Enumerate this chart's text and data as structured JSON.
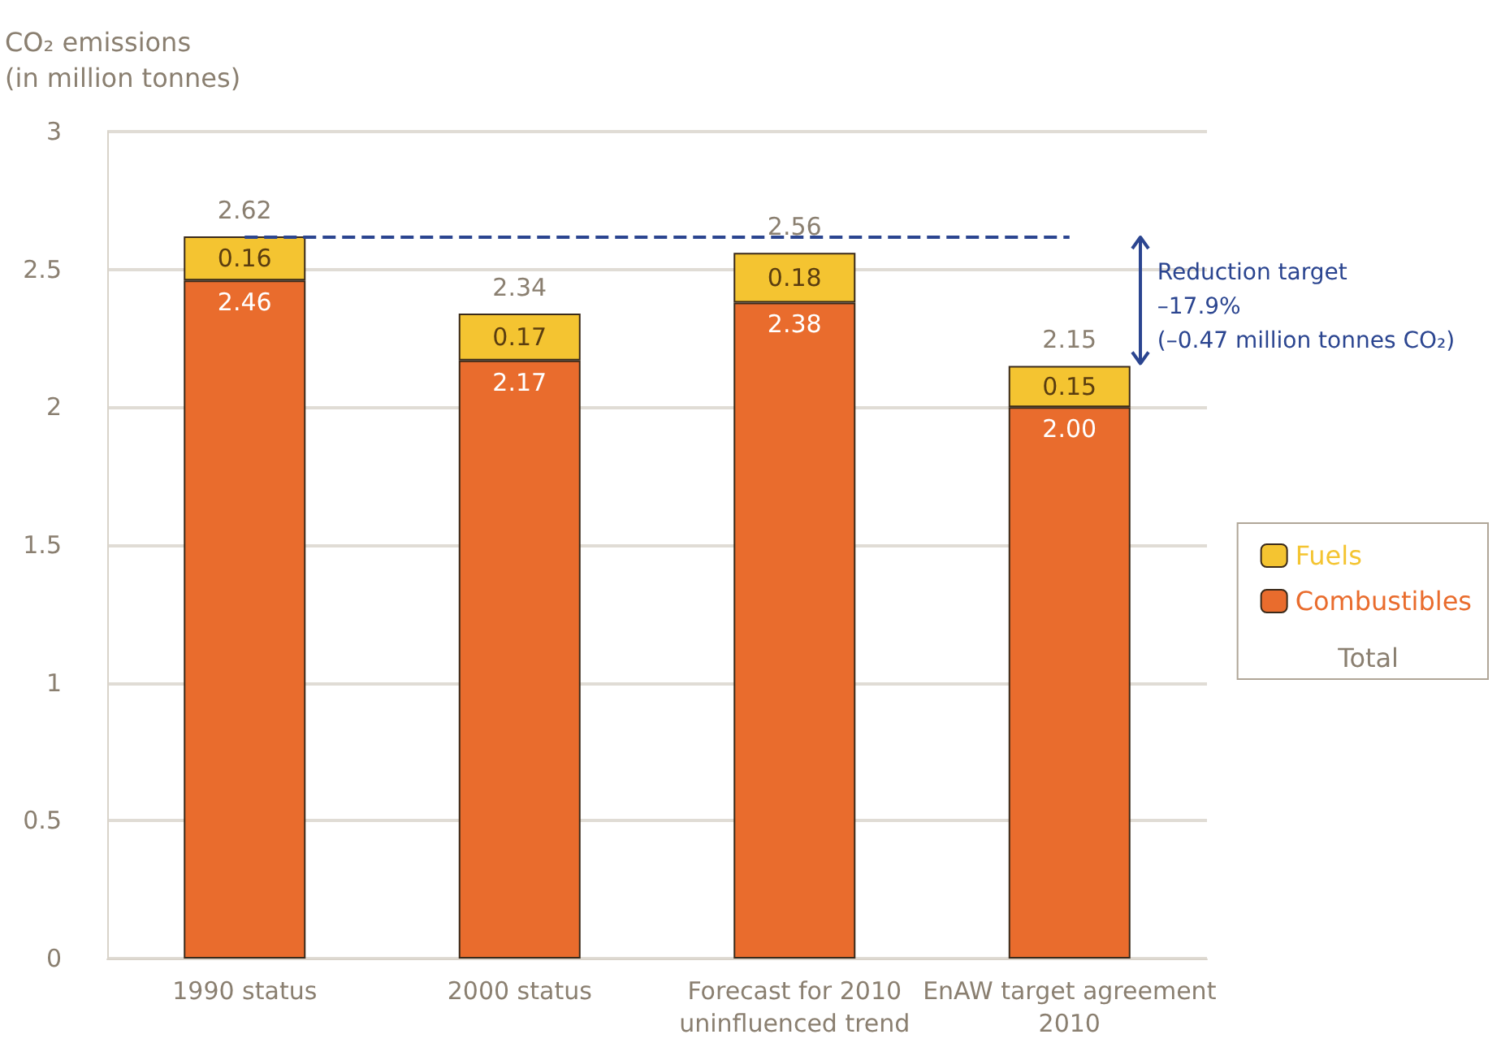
{
  "chart_data": {
    "type": "bar",
    "ylabel": "CO₂ emissions\n(in million tonnes)",
    "categories": [
      "1990 status",
      "2000 status",
      "Forecast for 2010\nuninfluenced trend",
      "EnAW target agreement\n2010"
    ],
    "stacked": true,
    "series": [
      {
        "name": "Combustibles",
        "color": "#e96c2d",
        "values": [
          2.46,
          2.17,
          2.38,
          2.0
        ],
        "value_labels": [
          "2.46",
          "2.17",
          "2.38",
          "2.00"
        ]
      },
      {
        "name": "Fuels",
        "color": "#f4c431",
        "values": [
          0.16,
          0.17,
          0.18,
          0.15
        ],
        "value_labels": [
          "0.16",
          "0.17",
          "0.18",
          "0.15"
        ]
      }
    ],
    "totals": [
      "2.62",
      "2.34",
      "2.56",
      "2.15"
    ],
    "ylim": [
      0,
      3
    ],
    "yticks": [
      0,
      0.5,
      1,
      1.5,
      2,
      2.5,
      3
    ],
    "grid": "y",
    "legend": "right",
    "ref_lines": [
      {
        "axis": "y",
        "value": 2.62,
        "color": "#2b4590",
        "line_style": "dashed"
      }
    ],
    "annotations": [
      "Total",
      "Reduction target\n–17.9%\n(–0.47 million tonnes CO₂)"
    ]
  }
}
